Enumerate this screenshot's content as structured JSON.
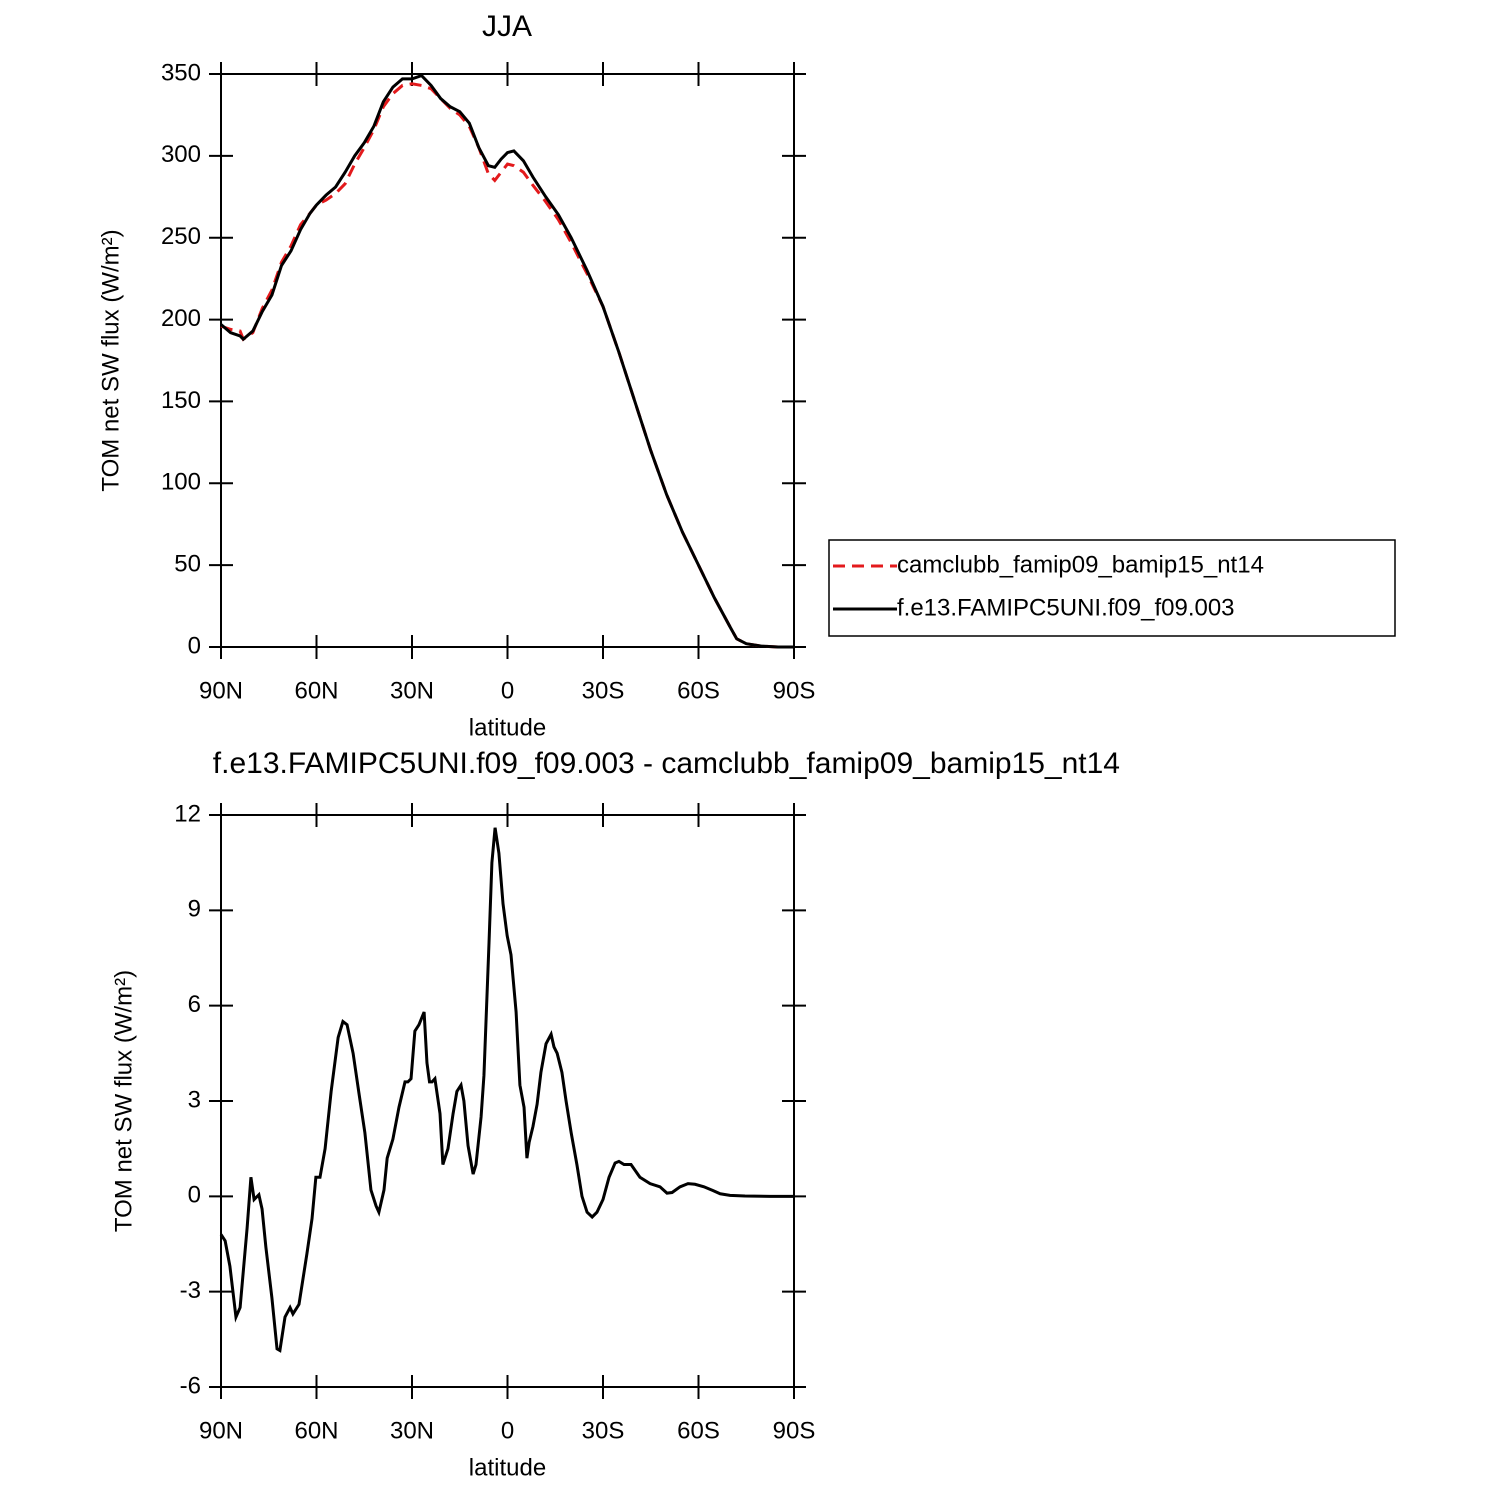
{
  "chart_data": [
    {
      "type": "line",
      "title": "JJA",
      "x_label": "latitude",
      "y_label": "TOM net SW flux (W/m²)",
      "xlim": [
        90,
        -90
      ],
      "ylim": [
        0,
        350
      ],
      "xticks": [
        {
          "value": 90,
          "label": "90N"
        },
        {
          "value": 60,
          "label": "60N"
        },
        {
          "value": 30,
          "label": "30N"
        },
        0,
        {
          "value": -30,
          "label": "30S"
        },
        {
          "value": -60,
          "label": "60S"
        },
        {
          "value": -90,
          "label": "90S"
        }
      ],
      "yticks": [
        0,
        50,
        100,
        150,
        200,
        250,
        300,
        350
      ],
      "legend": "right",
      "x": [
        90,
        87,
        84,
        83,
        80,
        77,
        74,
        71,
        68,
        65,
        62,
        60,
        57,
        54,
        51,
        48,
        45,
        42,
        39,
        36,
        33,
        30,
        27,
        24,
        21,
        18,
        15,
        12,
        9,
        6,
        4,
        2,
        0,
        -2,
        -5,
        -8,
        -12,
        -16,
        -20,
        -25,
        -30,
        -35,
        -40,
        -45,
        -50,
        -55,
        -60,
        -65,
        -70,
        -72,
        -75,
        -80,
        -85,
        -90
      ],
      "series": [
        {
          "name": "camclubb_famip09_bamip15_nt14",
          "color": "#e31a1c",
          "line_style": "dashed",
          "values": [
            196,
            194,
            193,
            188,
            192,
            207,
            218,
            235,
            245,
            258,
            265,
            270,
            273,
            277,
            283,
            295,
            305,
            316,
            330,
            338,
            343,
            344,
            343,
            341,
            335,
            329,
            325,
            318,
            305,
            289,
            285,
            290,
            295,
            294,
            290,
            282,
            272,
            261,
            247,
            228,
            208,
            180,
            150,
            120,
            93,
            70,
            50,
            30,
            12,
            5,
            2,
            0.5,
            0,
            0
          ]
        },
        {
          "name": "f.e13.FAMIPC5UNI.f09_f09.003",
          "color": "#000000",
          "line_style": "solid",
          "values": [
            197,
            192,
            190,
            188,
            193,
            205,
            215,
            233,
            242,
            255,
            265,
            270,
            276,
            281,
            290,
            300,
            308,
            318,
            333,
            342,
            347,
            347,
            349,
            343,
            335,
            330,
            327,
            320,
            305,
            294,
            293,
            298,
            302,
            303,
            297,
            287,
            275,
            264,
            250,
            230,
            208,
            180,
            150,
            120,
            93,
            70,
            50,
            30,
            12,
            5,
            2,
            0.5,
            0,
            0
          ]
        }
      ]
    },
    {
      "type": "line",
      "title": "f.e13.FAMIPC5UNI.f09_f09.003 - camclubb_famip09_bamip15_nt14",
      "x_label": "latitude",
      "y_label": "TOM net SW flux (W/m²)",
      "xlim": [
        90,
        -90
      ],
      "ylim": [
        -6,
        12
      ],
      "xticks": [
        {
          "value": 90,
          "label": "90N"
        },
        {
          "value": 60,
          "label": "60N"
        },
        {
          "value": 30,
          "label": "30N"
        },
        0,
        {
          "value": -30,
          "label": "30S"
        },
        {
          "value": -60,
          "label": "60S"
        },
        {
          "value": -90,
          "label": "90S"
        }
      ],
      "yticks": [
        -6,
        -3,
        0,
        3,
        6,
        9,
        12
      ],
      "color": "#000000",
      "x": [
        90,
        88.7,
        87.2,
        85.3,
        84.0,
        81.8,
        80.6,
        79.6,
        78.1,
        77.1,
        75.9,
        74.0,
        72.4,
        71.5,
        69.9,
        68.3,
        67.4,
        65.5,
        63.0,
        61.4,
        60.2,
        58.9,
        57.3,
        55.4,
        53.2,
        51.7,
        50.4,
        48.5,
        46.6,
        44.8,
        42.9,
        41.3,
        40.4,
        38.8,
        37.8,
        36.0,
        34.1,
        32.2,
        31.3,
        30.3,
        29.1,
        27.8,
        26.2,
        25.3,
        24.5,
        23.7,
        22.8,
        21.2,
        20.3,
        18.7,
        17.1,
        15.9,
        14.6,
        13.7,
        12.4,
        10.8,
        9.9,
        8.3,
        7.4,
        5.8,
        4.9,
        3.9,
        2.7,
        1.4,
        0.1,
        -1.1,
        -2.7,
        -3.9,
        -5.2,
        -6.1,
        -6.8,
        -8.0,
        -9.3,
        -10.5,
        -12.1,
        -13.7,
        -14.6,
        -15.6,
        -17.1,
        -18.4,
        -20.0,
        -21.8,
        -23.4,
        -25.0,
        -26.6,
        -28.1,
        -30.0,
        -31.9,
        -33.8,
        -35.0,
        -36.6,
        -38.8,
        -41.6,
        -44.8,
        -47.9,
        -50.1,
        -51.7,
        -54.2,
        -56.7,
        -58.9,
        -61.7,
        -64.6,
        -66.8,
        -69.9,
        -74.6,
        -82.5,
        -90
      ],
      "values": [
        -1.2,
        -1.4,
        -2.2,
        -3.8,
        -3.5,
        -1.0,
        0.6,
        -0.1,
        0.05,
        -0.4,
        -1.6,
        -3.2,
        -4.8,
        -4.85,
        -3.8,
        -3.5,
        -3.7,
        -3.4,
        -1.8,
        -0.7,
        0.6,
        0.6,
        1.5,
        3.3,
        5.0,
        5.5,
        5.4,
        4.5,
        3.2,
        2.0,
        0.2,
        -0.3,
        -0.5,
        0.2,
        1.2,
        1.8,
        2.8,
        3.6,
        3.6,
        3.7,
        5.2,
        5.4,
        5.8,
        4.2,
        3.6,
        3.6,
        3.7,
        2.6,
        1.0,
        1.5,
        2.6,
        3.3,
        3.5,
        3.0,
        1.6,
        0.7,
        1.0,
        2.5,
        3.8,
        8.0,
        10.5,
        11.6,
        10.8,
        9.2,
        8.2,
        7.6,
        5.8,
        3.5,
        2.8,
        1.2,
        1.7,
        2.2,
        2.9,
        3.9,
        4.8,
        5.1,
        4.7,
        4.5,
        3.9,
        3.0,
        2.0,
        1.0,
        0.0,
        -0.5,
        -0.65,
        -0.5,
        -0.1,
        0.6,
        1.05,
        1.1,
        1.0,
        1.0,
        0.6,
        0.4,
        0.3,
        0.1,
        0.12,
        0.3,
        0.4,
        0.38,
        0.3,
        0.18,
        0.08,
        0.03,
        0.01,
        0,
        0
      ]
    }
  ]
}
